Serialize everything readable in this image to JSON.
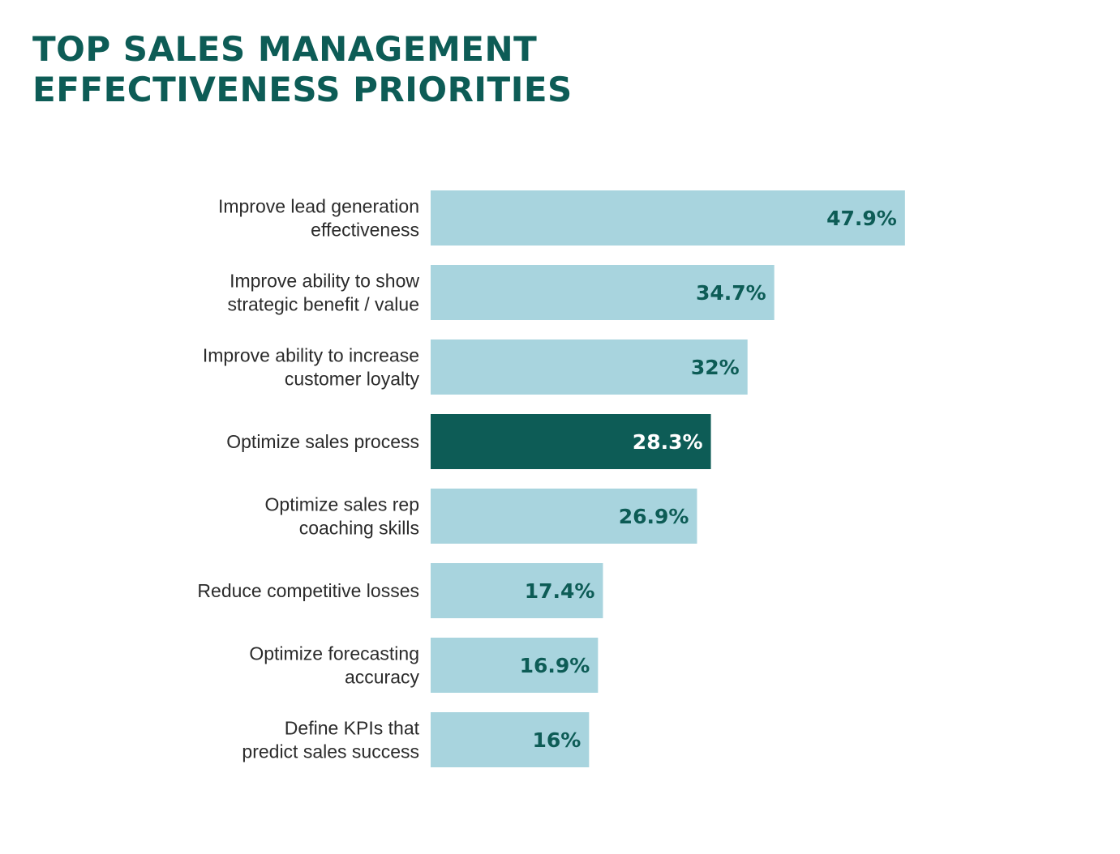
{
  "title": {
    "line1": "TOP SALES MANAGEMENT",
    "line2": "EFFECTIVENESS PRIORITIES"
  },
  "colors": {
    "title": "#0d5c56",
    "bar": "#a8d4de",
    "bar_highlight": "#0d5c56",
    "value_text": "#0d5c56",
    "value_text_highlight": "#ffffff",
    "category_text": "#2b2b2b"
  },
  "chart_data": {
    "type": "bar",
    "orientation": "horizontal",
    "title": "TOP SALES MANAGEMENT EFFECTIVENESS PRIORITIES",
    "categories": [
      [
        "Improve lead generation",
        "effectiveness"
      ],
      [
        "Improve ability to show",
        "strategic benefit / value"
      ],
      [
        "Improve ability to increase",
        "customer loyalty"
      ],
      [
        "Optimize sales process"
      ],
      [
        "Optimize sales rep",
        "coaching skills"
      ],
      [
        "Reduce competitive losses"
      ],
      [
        "Optimize forecasting",
        "accuracy"
      ],
      [
        "Define KPIs that",
        "predict sales success"
      ]
    ],
    "values": [
      47.9,
      34.7,
      32,
      28.3,
      26.9,
      17.4,
      16.9,
      16
    ],
    "value_labels": [
      "47.9%",
      "34.7%",
      "32%",
      "28.3%",
      "26.9%",
      "17.4%",
      "16.9%",
      "16%"
    ],
    "highlight_index": 3,
    "xlim": [
      0,
      50
    ],
    "xlabel": "",
    "ylabel": "",
    "grid": false,
    "legend": "none"
  }
}
